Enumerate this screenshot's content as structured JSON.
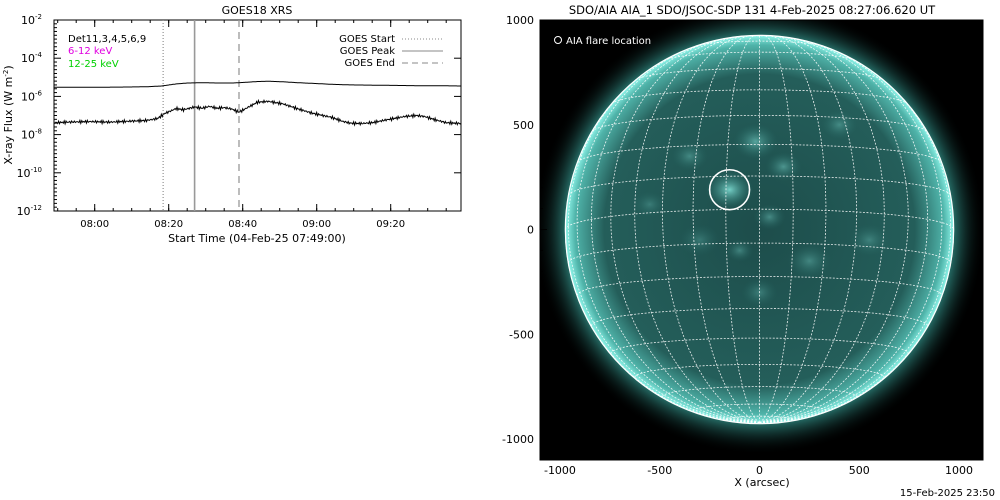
{
  "chart_data": [
    {
      "type": "line",
      "title": "GOES18 XRS",
      "xlabel": "Start Time (04-Feb-25 07:49:00)",
      "ylabel": "X-ray Flux (W m",
      "ylabel_sup": "-2",
      "ylabel_close": ")",
      "y_scale": "log",
      "ylim": [
        1e-12,
        0.01
      ],
      "xlim": [
        "07:49",
        "09:39"
      ],
      "y_ticks": [
        {
          "value": 0.01,
          "base": "10",
          "exp": "-2"
        },
        {
          "value": 0.0001,
          "base": "10",
          "exp": "-4"
        },
        {
          "value": 1e-06,
          "base": "10",
          "exp": "-6"
        },
        {
          "value": 1e-08,
          "base": "10",
          "exp": "-8"
        },
        {
          "value": 1e-10,
          "base": "10",
          "exp": "-10"
        },
        {
          "value": 1e-12,
          "base": "10",
          "exp": "-12"
        }
      ],
      "x_ticks": [
        "08:00",
        "08:20",
        "08:40",
        "09:00",
        "09:20"
      ],
      "x_tick_minutes": [
        11,
        31,
        51,
        71,
        91
      ],
      "x_range_minutes": [
        0,
        110
      ],
      "detector_label": "Det11,3,4,5,6,9",
      "band_labels": [
        {
          "text": "6-12 keV",
          "color": "#e000e0"
        },
        {
          "text": "12-25 keV",
          "color": "#00d000"
        }
      ],
      "legend": [
        {
          "text": "GOES Start",
          "style": "dotted"
        },
        {
          "text": "GOES Peak",
          "style": "solid"
        },
        {
          "text": "GOES End",
          "style": "dashed"
        }
      ],
      "legend_position": "top-right",
      "event_lines": [
        {
          "name": "GOES Start",
          "minute": 29.5,
          "style": "dotted"
        },
        {
          "name": "GOES Peak",
          "minute": 38,
          "style": "solid"
        },
        {
          "name": "GOES End",
          "minute": 50,
          "style": "dashed"
        }
      ],
      "series": [
        {
          "band": "long",
          "color": "#000000",
          "x_minutes": [
            0,
            10,
            20,
            25,
            29,
            33,
            36,
            40,
            45,
            48,
            52,
            55,
            58,
            62,
            66,
            70,
            75,
            80,
            85,
            90,
            95,
            100,
            105,
            110
          ],
          "values": [
            3e-06,
            3e-06,
            3.1e-06,
            3.2e-06,
            3.5e-06,
            4.5e-06,
            5e-06,
            5.2e-06,
            5e-06,
            5e-06,
            5.5e-06,
            6e-06,
            6.2e-06,
            5.8e-06,
            5.2e-06,
            4.8e-06,
            4.3e-06,
            4e-06,
            3.9e-06,
            3.8e-06,
            3.7e-06,
            3.6e-06,
            3.6e-06,
            3.5e-06
          ]
        },
        {
          "band": "short",
          "color": "#000000",
          "x_minutes": [
            0,
            5,
            10,
            15,
            20,
            25,
            28,
            30,
            33,
            35,
            38,
            40,
            42,
            44,
            46,
            48,
            50,
            52,
            55,
            58,
            62,
            66,
            70,
            75,
            78,
            80,
            83,
            86,
            90,
            95,
            98,
            100,
            103,
            106,
            110
          ],
          "values": [
            4.2e-08,
            4.6e-08,
            4.8e-08,
            4.5e-08,
            5e-08,
            5.5e-08,
            7e-08,
            1.3e-07,
            2.3e-07,
            2e-07,
            2.8e-07,
            2.4e-07,
            3e-07,
            2.4e-07,
            2.6e-07,
            2.2e-07,
            1.5e-07,
            2.4e-07,
            5e-07,
            5.5e-07,
            4e-07,
            2.2e-07,
            1.3e-07,
            8e-08,
            5e-08,
            4e-08,
            3.8e-08,
            4.2e-08,
            6e-08,
            9e-08,
            1e-07,
            9e-08,
            6e-08,
            4.2e-08,
            3.8e-08
          ]
        }
      ],
      "grid": false
    },
    {
      "type": "scatter",
      "title": "SDO/AIA AIA_1 SDO/JSOC-SDP 131  4-Feb-2025 08:27:06.620 UT",
      "xlabel": "X (arcsec)",
      "ylabel": "",
      "xlim": [
        -1100,
        1120
      ],
      "ylim": [
        -1100,
        1000
      ],
      "x_ticks": [
        -1000,
        -500,
        0,
        500,
        1000
      ],
      "y_ticks": [
        1000,
        500,
        0,
        -500,
        -1000
      ],
      "legend": [
        {
          "text": "AIA flare location",
          "symbol": "circle",
          "color": "#ffffff"
        }
      ],
      "legend_position": "top-left",
      "disk_radius_arcsec": 973,
      "grid_step_deg": 10,
      "b0_deg": -6,
      "image_colors": {
        "disk": "#1a4a48",
        "bright": "#8ff5ea",
        "background": "#000000"
      },
      "flare_location": {
        "x": -150,
        "y": 190,
        "circle_radius": 100
      }
    }
  ],
  "footer_timestamp": "15-Feb-2025 23:50"
}
